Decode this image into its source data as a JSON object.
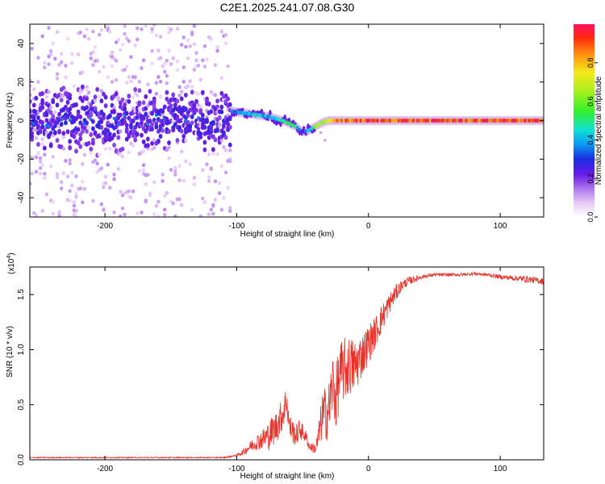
{
  "figure": {
    "title": "C2E1.2025.241.07.08.G30"
  },
  "chart_data": [
    {
      "type": "heatmap",
      "title": "C2E1.2025.241.07.08.G30",
      "xlabel": "Height of straight line (km)",
      "ylabel": "Frequency (Hz)",
      "xlim": [
        -257,
        133
      ],
      "ylim": [
        -50,
        50
      ],
      "xticks": [
        -200,
        -100,
        0,
        100
      ],
      "xtick_labels": [
        "-200",
        "-100",
        "0",
        "100"
      ],
      "yticks": [
        -40,
        -20,
        0,
        20,
        40
      ],
      "ytick_labels": [
        "-40",
        "-20",
        "0",
        "20",
        "40"
      ],
      "description_points": {
        "ridge_height_km": [
          -105,
          -95,
          -85,
          -75,
          -65,
          -55,
          -50,
          -45,
          -40,
          -35,
          -30,
          -25,
          -20,
          -10,
          0,
          20,
          60,
          100,
          133
        ],
        "ridge_frequency_hz": [
          5,
          4,
          3,
          2,
          0,
          -3,
          -6,
          -5,
          -3,
          -1,
          0,
          0,
          0,
          0,
          0,
          0,
          0,
          0,
          0
        ],
        "ridge_amplitude": [
          0.35,
          0.4,
          0.45,
          0.4,
          0.55,
          0.5,
          0.25,
          0.45,
          0.6,
          0.7,
          0.8,
          0.85,
          0.9,
          0.92,
          0.95,
          0.95,
          0.95,
          0.95,
          0.95
        ]
      },
      "colorbar": {
        "label": "Normalized spectral amplitude",
        "range": [
          0,
          1
        ],
        "ticks": [
          0.0,
          0.2,
          0.4,
          0.6,
          0.8
        ],
        "tick_labels": [
          "0.0",
          "0.2",
          "0.4",
          "0.6",
          "0.8"
        ]
      }
    },
    {
      "type": "line",
      "xlabel": "Height of straight line (km)",
      "ylabel": "SNR (10 * v/v)",
      "multiplier": "(x10",
      "multiplier_exp": "4",
      "multiplier_close": ")",
      "xlim": [
        -257,
        133
      ],
      "ylim": [
        0,
        1.75
      ],
      "xticks": [
        -200,
        -100,
        0,
        100
      ],
      "xtick_labels": [
        "-200",
        "-100",
        "0",
        "100"
      ],
      "yticks": [
        0.0,
        0.5,
        1.0,
        1.5
      ],
      "ytick_labels": [
        "0.0",
        "0.5",
        "1.0",
        "1.5"
      ],
      "series": [
        {
          "name": "SNR",
          "color": "#e8322a",
          "x": [
            -257,
            -200,
            -150,
            -110,
            -100,
            -95,
            -90,
            -85,
            -80,
            -75,
            -70,
            -65,
            -62,
            -60,
            -55,
            -52,
            -50,
            -47,
            -45,
            -40,
            -38,
            -35,
            -30,
            -27,
            -25,
            -22,
            -20,
            -15,
            -10,
            -5,
            0,
            5,
            10,
            15,
            20,
            25,
            30,
            40,
            50,
            60,
            70,
            80,
            90,
            100,
            110,
            120,
            133
          ],
          "y": [
            0.02,
            0.02,
            0.02,
            0.02,
            0.04,
            0.07,
            0.12,
            0.16,
            0.19,
            0.23,
            0.3,
            0.42,
            0.55,
            0.3,
            0.22,
            0.28,
            0.25,
            0.2,
            0.12,
            0.1,
            0.2,
            0.4,
            0.45,
            0.7,
            0.55,
            0.75,
            0.8,
            0.85,
            0.85,
            0.95,
            1.05,
            1.15,
            1.28,
            1.4,
            1.5,
            1.58,
            1.62,
            1.66,
            1.68,
            1.68,
            1.68,
            1.69,
            1.68,
            1.66,
            1.65,
            1.64,
            1.62
          ],
          "noise": [
            0.005,
            0.005,
            0.005,
            0.005,
            0.01,
            0.03,
            0.05,
            0.07,
            0.1,
            0.14,
            0.15,
            0.15,
            0.15,
            0.12,
            0.1,
            0.1,
            0.08,
            0.05,
            0.04,
            0.05,
            0.12,
            0.22,
            0.28,
            0.3,
            0.3,
            0.3,
            0.3,
            0.28,
            0.25,
            0.2,
            0.18,
            0.15,
            0.13,
            0.1,
            0.08,
            0.05,
            0.04,
            0.02,
            0.015,
            0.015,
            0.015,
            0.015,
            0.015,
            0.02,
            0.025,
            0.03,
            0.03
          ]
        }
      ]
    }
  ]
}
